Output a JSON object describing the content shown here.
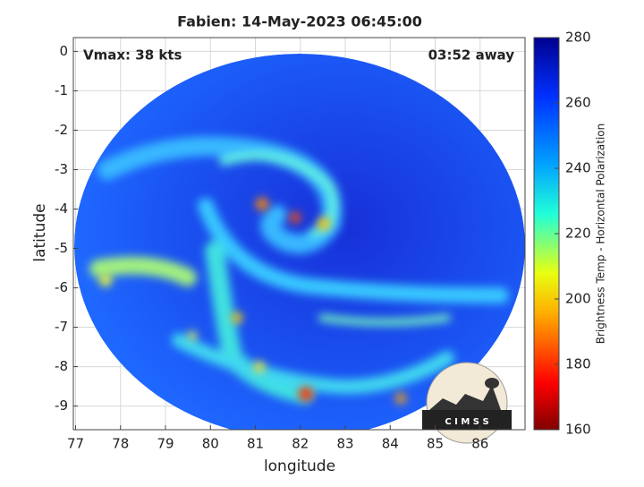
{
  "chart_data": {
    "type": "map",
    "title": "Fabien: 14-May-2023 06:45:00",
    "annotations": [
      "Vmax: 38 kts",
      "03:52 away"
    ],
    "x_label": "longitude",
    "y_label": "latitude",
    "xlim": [
      76.95,
      87.0
    ],
    "ylim": [
      -9.6,
      0.35
    ],
    "xticks": [
      77,
      78,
      79,
      80,
      81,
      82,
      83,
      84,
      85,
      86
    ],
    "yticks": [
      0,
      -1,
      -2,
      -3,
      -4,
      -5,
      -6,
      -7,
      -8,
      -9
    ],
    "grid": true,
    "colorbar": {
      "label": "Brightness Temp - Horizontal Polarization",
      "clim": [
        160,
        280
      ],
      "ticks": [
        160,
        180,
        200,
        220,
        240,
        260,
        280
      ]
    },
    "logo_text": "C I M S S"
  }
}
